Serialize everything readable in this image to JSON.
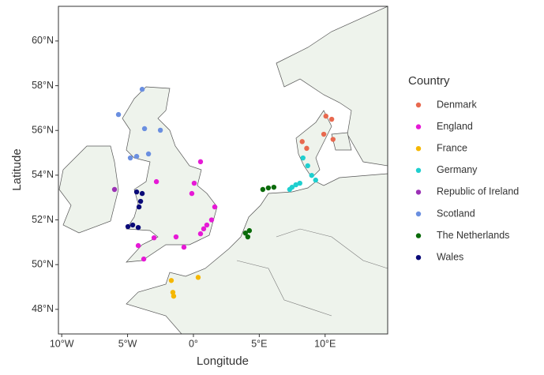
{
  "chart_data": {
    "type": "scatter",
    "x_label": "Longitude",
    "y_label": "Latitude",
    "legend_title": "Country",
    "legend": "right",
    "xlim": [
      -10.25,
      14.75
    ],
    "ylim": [
      46.9,
      61.55
    ],
    "xticks": [
      {
        "value": -10,
        "label": "10°W"
      },
      {
        "value": -5,
        "label": "5°W"
      },
      {
        "value": 0,
        "label": "0°"
      },
      {
        "value": 5,
        "label": "5°E"
      },
      {
        "value": 10,
        "label": "10°E"
      }
    ],
    "yticks": [
      {
        "value": 48,
        "label": "48°N"
      },
      {
        "value": 50,
        "label": "50°N"
      },
      {
        "value": 52,
        "label": "52°N"
      },
      {
        "value": 54,
        "label": "54°N"
      },
      {
        "value": 56,
        "label": "56°N"
      },
      {
        "value": 58,
        "label": "58°N"
      },
      {
        "value": 60,
        "label": "60°N"
      }
    ],
    "series": [
      {
        "name": "Denmark",
        "color": "#e8694f",
        "x": [
          10.06,
          10.5,
          9.9,
          10.6,
          8.26,
          8.6
        ],
        "values": [
          56.64,
          56.5,
          55.83,
          55.6,
          55.5,
          55.2
        ]
      },
      {
        "name": "England",
        "color": "#e619d6",
        "x": [
          0.54,
          0.06,
          -0.12,
          1.62,
          1.38,
          1.02,
          0.78,
          0.54,
          -2.81,
          -1.32,
          -2.99,
          -4.19,
          -3.77,
          -0.72
        ],
        "values": [
          54.6,
          53.64,
          53.18,
          52.58,
          52.0,
          51.77,
          51.6,
          51.38,
          53.71,
          51.24,
          51.2,
          50.85,
          50.25,
          50.78
        ]
      },
      {
        "name": "France",
        "color": "#f5b700",
        "x": [
          -1.68,
          -1.56,
          -1.5,
          0.36
        ],
        "values": [
          49.29,
          48.76,
          48.59,
          49.43
        ]
      },
      {
        "name": "Germany",
        "color": "#1fcfcf",
        "x": [
          8.32,
          8.68,
          8.98,
          9.28,
          8.08,
          7.49,
          7.78,
          7.31
        ],
        "values": [
          54.77,
          54.42,
          53.99,
          53.78,
          53.64,
          53.46,
          53.57,
          53.36
        ]
      },
      {
        "name": "Republic of Ireland",
        "color": "#9b30b5",
        "x": [
          -5.99
        ],
        "values": [
          53.36
        ]
      },
      {
        "name": "Scotland",
        "color": "#6a8fe0",
        "x": [
          -3.89,
          -5.69,
          -3.71,
          -2.51,
          -3.41,
          -4.31,
          -4.79
        ],
        "values": [
          57.84,
          56.71,
          56.08,
          56.01,
          54.95,
          54.84,
          54.77
        ]
      },
      {
        "name": "The Netherlands",
        "color": "#0a6b0a",
        "x": [
          5.69,
          6.11,
          5.27,
          3.95,
          4.25,
          4.13
        ],
        "values": [
          53.43,
          53.46,
          53.36,
          51.41,
          51.52,
          51.24
        ]
      },
      {
        "name": "Wales",
        "color": "#0a0a78",
        "x": [
          -4.31,
          -3.89,
          -4.01,
          -4.13,
          -4.97,
          -4.19,
          -4.61
        ],
        "values": [
          53.25,
          53.18,
          52.83,
          52.58,
          51.7,
          51.66,
          51.77
        ]
      }
    ]
  }
}
